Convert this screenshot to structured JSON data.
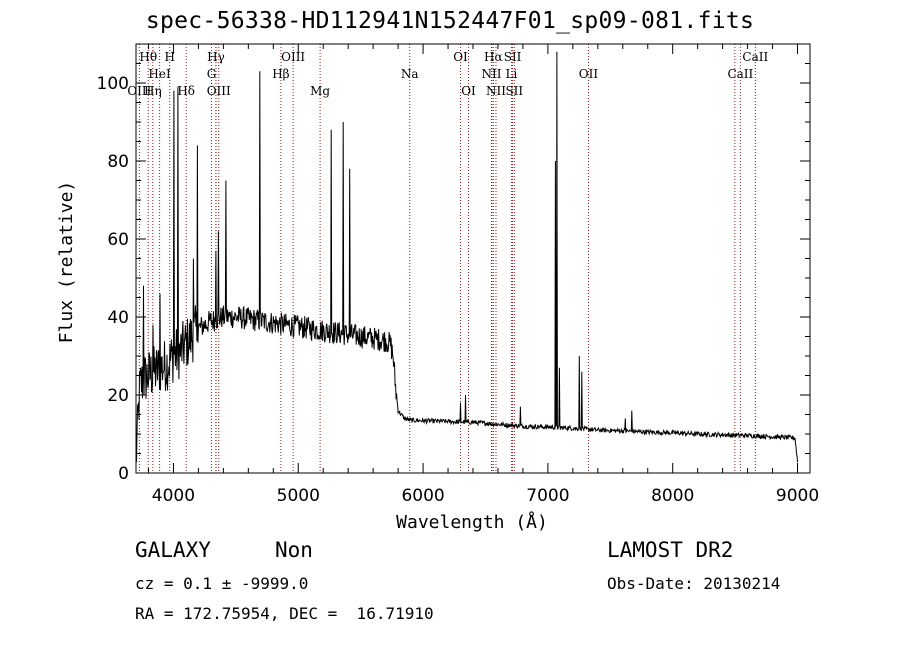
{
  "header": {
    "title": "spec-56338-HD112941N152447F01_sp09-081.fits"
  },
  "chart_data": {
    "type": "line",
    "title": "spec-56338-HD112941N152447F01_sp09-081.fits",
    "xlabel": "Wavelength (Å)",
    "ylabel": "Flux (relative)",
    "xlim": [
      3700,
      9100
    ],
    "ylim": [
      0,
      110
    ],
    "xticks": [
      "4000",
      "5000",
      "6000",
      "7000",
      "8000",
      "9000"
    ],
    "yticks": [
      "0",
      "20",
      "40",
      "60",
      "80",
      "100"
    ],
    "line_color": "#000000",
    "marker_color": "#8b1a1a",
    "continuum": {
      "x": [
        3700,
        3730,
        3760,
        3800,
        3850,
        3900,
        3950,
        4000,
        4050,
        4100,
        4150,
        4200,
        4300,
        4400,
        4500,
        4600,
        4700,
        4800,
        4900,
        5000,
        5100,
        5200,
        5300,
        5400,
        5500,
        5600,
        5700,
        5740,
        5760,
        5780,
        5800,
        5850,
        5900,
        6000,
        6200,
        6400,
        6600,
        6800,
        7000,
        7200,
        7400,
        7600,
        7800,
        8000,
        8200,
        8400,
        8600,
        8800,
        8980,
        9000
      ],
      "y": [
        3,
        22,
        24,
        25,
        26,
        27,
        28,
        30,
        31,
        33,
        35,
        37,
        39,
        40,
        40,
        39.5,
        39,
        38.5,
        38,
        37.5,
        37,
        36.5,
        36,
        35.5,
        35,
        34.5,
        34,
        33,
        30,
        22,
        16,
        14,
        13.5,
        13.4,
        13.2,
        13,
        12.5,
        12,
        11.8,
        11.5,
        11,
        10.8,
        10.5,
        10.3,
        10,
        9.8,
        9.6,
        9.3,
        9,
        3
      ]
    },
    "emission_lines": [
      {
        "x": 3760,
        "y": 48
      },
      {
        "x": 3835,
        "y": 38
      },
      {
        "x": 3890,
        "y": 46
      },
      {
        "x": 4005,
        "y": 98
      },
      {
        "x": 4035,
        "y": 99
      },
      {
        "x": 4160,
        "y": 55
      },
      {
        "x": 4190,
        "y": 84
      },
      {
        "x": 4340,
        "y": 57
      },
      {
        "x": 4360,
        "y": 62
      },
      {
        "x": 4420,
        "y": 75
      },
      {
        "x": 4690,
        "y": 103
      },
      {
        "x": 5265,
        "y": 88
      },
      {
        "x": 5360,
        "y": 90
      },
      {
        "x": 5410,
        "y": 78
      },
      {
        "x": 6300,
        "y": 18
      },
      {
        "x": 6340,
        "y": 20
      },
      {
        "x": 6780,
        "y": 17
      },
      {
        "x": 7060,
        "y": 80
      },
      {
        "x": 7070,
        "y": 108
      },
      {
        "x": 7090,
        "y": 27
      },
      {
        "x": 7250,
        "y": 30
      },
      {
        "x": 7270,
        "y": 26
      },
      {
        "x": 7620,
        "y": 14
      },
      {
        "x": 7670,
        "y": 16
      }
    ],
    "line_markers": [
      {
        "label": "Hθ",
        "x": 3798,
        "row": 1
      },
      {
        "label": "H",
        "x": 3970,
        "row": 1
      },
      {
        "label": "Hγ",
        "x": 4341,
        "row": 1
      },
      {
        "label": "OIII",
        "x": 4959,
        "row": 1
      },
      {
        "label": "OI",
        "x": 6300,
        "row": 1
      },
      {
        "label": "Hα",
        "x": 6563,
        "row": 1
      },
      {
        "label": "SII",
        "x": 6717,
        "row": 1
      },
      {
        "label": "CaII",
        "x": 8662,
        "row": 1
      },
      {
        "label": "HeI",
        "x": 3889,
        "row": 2
      },
      {
        "label": "G",
        "x": 4305,
        "row": 2
      },
      {
        "label": "Hβ",
        "x": 4861,
        "row": 2
      },
      {
        "label": "Na",
        "x": 5893,
        "row": 2
      },
      {
        "label": "NII",
        "x": 6548,
        "row": 2
      },
      {
        "label": "Li",
        "x": 6708,
        "row": 2
      },
      {
        "label": "OII",
        "x": 7325,
        "row": 2
      },
      {
        "label": "CaII",
        "x": 8542,
        "row": 2
      },
      {
        "label": "OIII",
        "x": 3727,
        "row": 3
      },
      {
        "label": "Hη",
        "x": 3835,
        "row": 3
      },
      {
        "label": "Hδ",
        "x": 4102,
        "row": 3
      },
      {
        "label": "OIII",
        "x": 4363,
        "row": 3
      },
      {
        "label": "Mg",
        "x": 5175,
        "row": 3
      },
      {
        "label": "OI",
        "x": 6364,
        "row": 3
      },
      {
        "label": "NII",
        "x": 6584,
        "row": 3
      },
      {
        "label": "SII",
        "x": 6731,
        "row": 3
      }
    ],
    "extra_marker_x": [
      3970,
      4340,
      6560,
      8498
    ],
    "grid": false,
    "legend": "none"
  },
  "footer": {
    "class_label": "GALAXY",
    "subclass_label": "Non",
    "cz_text": "cz = 0.1 ± -9999.0",
    "radec_text": "RA = 172.75954, DEC =  16.71910",
    "survey_label": "LAMOST DR2",
    "obs_date": "Obs-Date: 20130214"
  }
}
